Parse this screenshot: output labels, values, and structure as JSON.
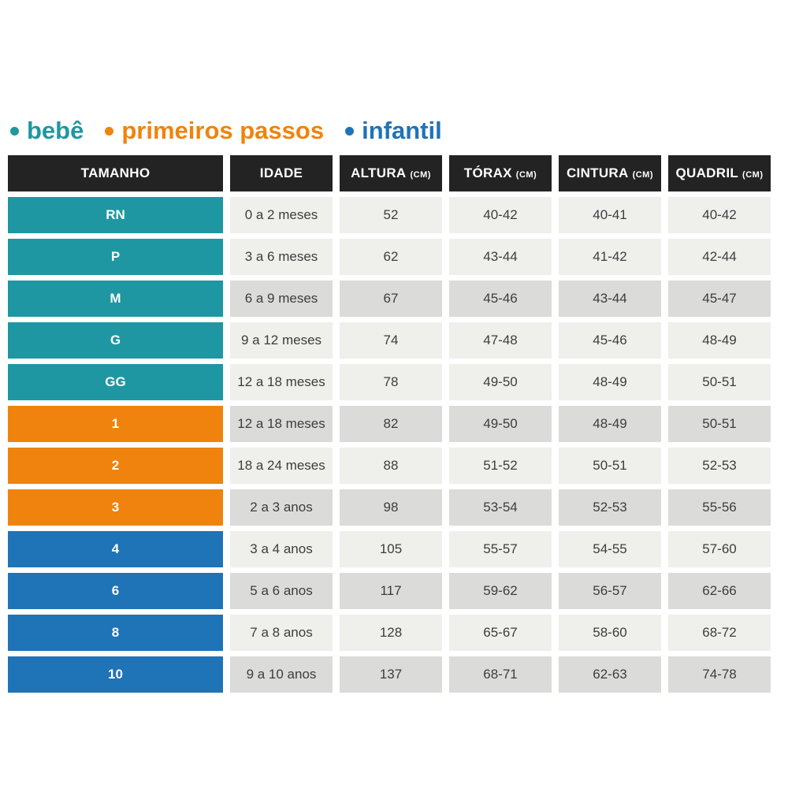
{
  "legend": {
    "items": [
      {
        "label": "bebê",
        "group": "bebe",
        "color": "#1e97a2"
      },
      {
        "label": "primeiros passos",
        "group": "primeiros-passos",
        "color": "#f0830d"
      },
      {
        "label": "infantil",
        "group": "infantil",
        "color": "#1f73b7"
      }
    ]
  },
  "header": {
    "cells": [
      {
        "label": "TAMANHO",
        "unit": ""
      },
      {
        "label": "IDADE",
        "unit": ""
      },
      {
        "label": "ALTURA",
        "unit": "(CM)"
      },
      {
        "label": "TÓRAX",
        "unit": "(CM)"
      },
      {
        "label": "CINTURA",
        "unit": "(CM)"
      },
      {
        "label": "QUADRIL",
        "unit": "(CM)"
      }
    ]
  },
  "chart_data": {
    "type": "table",
    "columns": [
      "TAMANHO",
      "IDADE",
      "ALTURA (CM)",
      "TÓRAX (CM)",
      "CINTURA (CM)",
      "QUADRIL (CM)"
    ],
    "rows": [
      {
        "tamanho": "RN",
        "idade": "0 a 2 meses",
        "altura": "52",
        "torax": "40-42",
        "cintura": "40-41",
        "quadril": "40-42",
        "group": "bebe",
        "shade": "light"
      },
      {
        "tamanho": "P",
        "idade": "3 a 6 meses",
        "altura": "62",
        "torax": "43-44",
        "cintura": "41-42",
        "quadril": "42-44",
        "group": "bebe",
        "shade": "light"
      },
      {
        "tamanho": "M",
        "idade": "6 a 9 meses",
        "altura": "67",
        "torax": "45-46",
        "cintura": "43-44",
        "quadril": "45-47",
        "group": "bebe",
        "shade": "dark"
      },
      {
        "tamanho": "G",
        "idade": "9 a 12 meses",
        "altura": "74",
        "torax": "47-48",
        "cintura": "45-46",
        "quadril": "48-49",
        "group": "bebe",
        "shade": "light"
      },
      {
        "tamanho": "GG",
        "idade": "12 a 18 meses",
        "altura": "78",
        "torax": "49-50",
        "cintura": "48-49",
        "quadril": "50-51",
        "group": "bebe",
        "shade": "light"
      },
      {
        "tamanho": "1",
        "idade": "12 a 18 meses",
        "altura": "82",
        "torax": "49-50",
        "cintura": "48-49",
        "quadril": "50-51",
        "group": "primeiros-passos",
        "shade": "dark"
      },
      {
        "tamanho": "2",
        "idade": "18 a 24 meses",
        "altura": "88",
        "torax": "51-52",
        "cintura": "50-51",
        "quadril": "52-53",
        "group": "primeiros-passos",
        "shade": "light"
      },
      {
        "tamanho": "3",
        "idade": "2 a 3 anos",
        "altura": "98",
        "torax": "53-54",
        "cintura": "52-53",
        "quadril": "55-56",
        "group": "primeiros-passos",
        "shade": "dark"
      },
      {
        "tamanho": "4",
        "idade": "3 a 4 anos",
        "altura": "105",
        "torax": "55-57",
        "cintura": "54-55",
        "quadril": "57-60",
        "group": "infantil",
        "shade": "light"
      },
      {
        "tamanho": "6",
        "idade": "5 a 6 anos",
        "altura": "117",
        "torax": "59-62",
        "cintura": "56-57",
        "quadril": "62-66",
        "group": "infantil",
        "shade": "dark"
      },
      {
        "tamanho": "8",
        "idade": "7 a 8 anos",
        "altura": "128",
        "torax": "65-67",
        "cintura": "58-60",
        "quadril": "68-72",
        "group": "infantil",
        "shade": "light"
      },
      {
        "tamanho": "10",
        "idade": "9 a 10 anos",
        "altura": "137",
        "torax": "68-71",
        "cintura": "62-63",
        "quadril": "74-78",
        "group": "infantil",
        "shade": "dark"
      }
    ]
  },
  "colors": {
    "background": "#ffffff",
    "header_bg": "#232323",
    "header_text": "#ffffff",
    "row_light_bg": "#efefec",
    "row_dark_bg": "#dbdbd9",
    "cell_text": "#3d3d3d",
    "bebe": "#1e97a2",
    "primeiros_passos": "#f0830d",
    "infantil": "#1f73b7"
  }
}
